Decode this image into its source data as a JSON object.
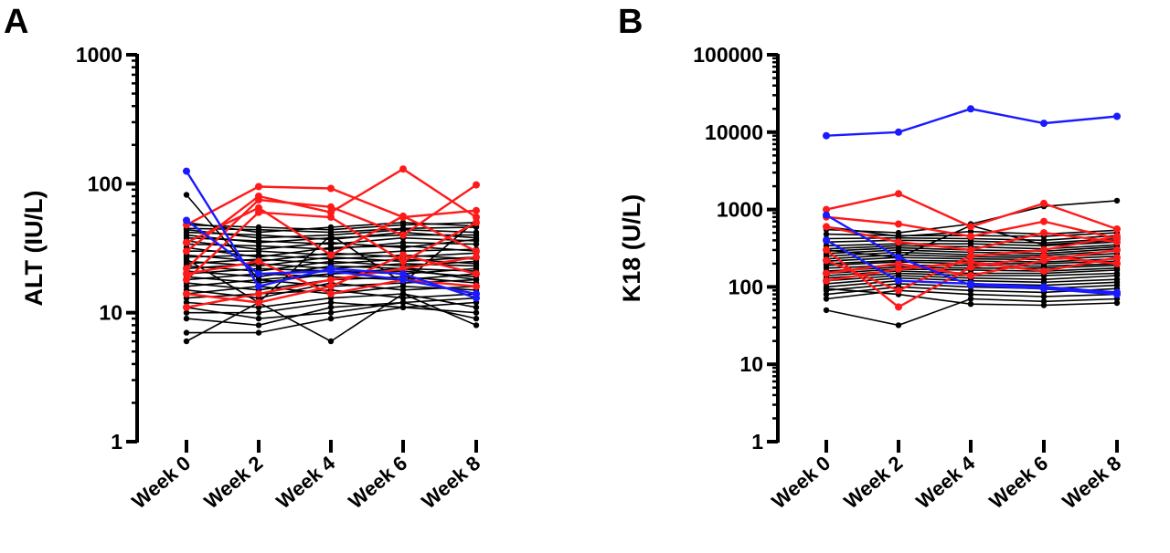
{
  "chart_data": [
    {
      "panel_label": "A",
      "type": "line",
      "ylabel": "ALT (IU/L)",
      "xlabel": "",
      "title": "",
      "y_scale": "log10",
      "ylim": [
        1,
        1000
      ],
      "y_ticks": [
        "1",
        "10",
        "100",
        "1000"
      ],
      "categories": [
        "Week 0",
        "Week 2",
        "Week 4",
        "Week 6",
        "Week 8"
      ],
      "grid": false,
      "legend": "none",
      "colors": {
        "default": "#000000",
        "red": "#ff1a1a",
        "blue": "#1a1aff"
      },
      "series": [
        {
          "color": "blue",
          "values": [
            125,
            16,
            22,
            20,
            13
          ]
        },
        {
          "color": "blue",
          "values": [
            52,
            20,
            21,
            18,
            14
          ]
        },
        {
          "color": "red",
          "values": [
            48,
            95,
            92,
            55,
            62
          ]
        },
        {
          "color": "red",
          "values": [
            30,
            80,
            60,
            130,
            55
          ]
        },
        {
          "color": "red",
          "values": [
            22,
            75,
            66,
            40,
            98
          ]
        },
        {
          "color": "red",
          "values": [
            35,
            65,
            28,
            56,
            30
          ]
        },
        {
          "color": "red",
          "values": [
            18,
            60,
            55,
            25,
            50
          ]
        },
        {
          "color": "red",
          "values": [
            11,
            14,
            18,
            22,
            27
          ]
        },
        {
          "color": "red",
          "values": [
            14,
            12,
            16,
            28,
            20
          ]
        },
        {
          "color": "red",
          "values": [
            20,
            25,
            14,
            18,
            16
          ]
        },
        {
          "color": "black",
          "values": [
            82,
            18,
            20,
            22,
            18
          ]
        },
        {
          "color": "black",
          "values": [
            6,
            12,
            6,
            14,
            8
          ]
        },
        {
          "color": "black",
          "values": [
            7,
            7,
            9,
            11,
            10
          ]
        },
        {
          "color": "black",
          "values": [
            9,
            8,
            11,
            12,
            13
          ]
        },
        {
          "color": "black",
          "values": [
            10,
            10,
            12,
            11,
            12
          ]
        },
        {
          "color": "black",
          "values": [
            12,
            11,
            13,
            14,
            11
          ]
        },
        {
          "color": "black",
          "values": [
            13,
            14,
            15,
            13,
            14
          ]
        },
        {
          "color": "black",
          "values": [
            14,
            16,
            14,
            16,
            15
          ]
        },
        {
          "color": "black",
          "values": [
            15,
            13,
            17,
            15,
            16
          ]
        },
        {
          "color": "black",
          "values": [
            16,
            18,
            16,
            17,
            18
          ]
        },
        {
          "color": "black",
          "values": [
            17,
            15,
            18,
            19,
            17
          ]
        },
        {
          "color": "black",
          "values": [
            18,
            20,
            19,
            18,
            20
          ]
        },
        {
          "color": "black",
          "values": [
            19,
            17,
            20,
            21,
            19
          ]
        },
        {
          "color": "black",
          "values": [
            20,
            22,
            21,
            20,
            22
          ]
        },
        {
          "color": "black",
          "values": [
            21,
            19,
            23,
            22,
            21
          ]
        },
        {
          "color": "black",
          "values": [
            22,
            24,
            22,
            24,
            23
          ]
        },
        {
          "color": "black",
          "values": [
            23,
            21,
            25,
            23,
            25
          ]
        },
        {
          "color": "black",
          "values": [
            24,
            26,
            24,
            26,
            24
          ]
        },
        {
          "color": "black",
          "values": [
            25,
            23,
            27,
            25,
            27
          ]
        },
        {
          "color": "black",
          "values": [
            27,
            28,
            26,
            28,
            26
          ]
        },
        {
          "color": "black",
          "values": [
            28,
            25,
            29,
            27,
            29
          ]
        },
        {
          "color": "black",
          "values": [
            30,
            30,
            28,
            30,
            31
          ]
        },
        {
          "color": "black",
          "values": [
            32,
            27,
            32,
            33,
            30
          ]
        },
        {
          "color": "black",
          "values": [
            34,
            33,
            31,
            35,
            34
          ]
        },
        {
          "color": "black",
          "values": [
            36,
            31,
            35,
            32,
            37
          ]
        },
        {
          "color": "black",
          "values": [
            38,
            36,
            34,
            38,
            36
          ]
        },
        {
          "color": "black",
          "values": [
            40,
            35,
            38,
            40,
            40
          ]
        },
        {
          "color": "black",
          "values": [
            42,
            40,
            37,
            42,
            38
          ]
        },
        {
          "color": "black",
          "values": [
            45,
            44,
            42,
            45,
            46
          ]
        },
        {
          "color": "black",
          "values": [
            48,
            46,
            44,
            48,
            50
          ]
        },
        {
          "color": "black",
          "values": [
            50,
            42,
            46,
            50,
            47
          ]
        },
        {
          "color": "black",
          "values": [
            44,
            38,
            40,
            44,
            42
          ]
        },
        {
          "color": "black",
          "values": [
            26,
            12,
            40,
            17,
            52
          ]
        },
        {
          "color": "black",
          "values": [
            11,
            9,
            10,
            12,
            9
          ]
        }
      ]
    },
    {
      "panel_label": "B",
      "type": "line",
      "ylabel": "K18 (U/L)",
      "xlabel": "",
      "title": "",
      "y_scale": "log10",
      "ylim": [
        1,
        100000
      ],
      "y_ticks": [
        "1",
        "10",
        "100",
        "1000",
        "10000",
        "100000"
      ],
      "categories": [
        "Week 0",
        "Week 2",
        "Week 4",
        "Week 6",
        "Week 8"
      ],
      "grid": false,
      "legend": "none",
      "colors": {
        "default": "#000000",
        "red": "#ff1a1a",
        "blue": "#1a1aff"
      },
      "series": [
        {
          "color": "blue",
          "values": [
            9000,
            10000,
            20000,
            13000,
            16000
          ]
        },
        {
          "color": "blue",
          "values": [
            850,
            240,
            105,
            95,
            80
          ]
        },
        {
          "color": "blue",
          "values": [
            400,
            120,
            110,
            100,
            85
          ]
        },
        {
          "color": "red",
          "values": [
            1000,
            1600,
            600,
            1200,
            560
          ]
        },
        {
          "color": "red",
          "values": [
            800,
            650,
            450,
            700,
            420
          ]
        },
        {
          "color": "red",
          "values": [
            600,
            380,
            300,
            500,
            380
          ]
        },
        {
          "color": "red",
          "values": [
            300,
            55,
            180,
            250,
            200
          ]
        },
        {
          "color": "red",
          "values": [
            220,
            90,
            250,
            300,
            450
          ]
        },
        {
          "color": "red",
          "values": [
            150,
            200,
            140,
            220,
            300
          ]
        },
        {
          "color": "red",
          "values": [
            120,
            170,
            210,
            160,
            240
          ]
        },
        {
          "color": "black",
          "values": [
            50,
            32,
            70,
            65,
            70
          ]
        },
        {
          "color": "black",
          "values": [
            70,
            90,
            80,
            75,
            80
          ]
        },
        {
          "color": "black",
          "values": [
            80,
            100,
            90,
            85,
            95
          ]
        },
        {
          "color": "black",
          "values": [
            90,
            110,
            100,
            95,
            105
          ]
        },
        {
          "color": "black",
          "values": [
            100,
            120,
            110,
            105,
            115
          ]
        },
        {
          "color": "black",
          "values": [
            110,
            130,
            120,
            115,
            125
          ]
        },
        {
          "color": "black",
          "values": [
            120,
            140,
            130,
            125,
            140
          ]
        },
        {
          "color": "black",
          "values": [
            130,
            150,
            140,
            140,
            150
          ]
        },
        {
          "color": "black",
          "values": [
            140,
            160,
            150,
            150,
            165
          ]
        },
        {
          "color": "black",
          "values": [
            150,
            170,
            165,
            160,
            175
          ]
        },
        {
          "color": "black",
          "values": [
            160,
            180,
            175,
            175,
            190
          ]
        },
        {
          "color": "black",
          "values": [
            175,
            190,
            190,
            185,
            200
          ]
        },
        {
          "color": "black",
          "values": [
            190,
            210,
            200,
            200,
            215
          ]
        },
        {
          "color": "black",
          "values": [
            200,
            220,
            215,
            210,
            230
          ]
        },
        {
          "color": "black",
          "values": [
            215,
            240,
            230,
            225,
            250
          ]
        },
        {
          "color": "black",
          "values": [
            230,
            260,
            245,
            240,
            270
          ]
        },
        {
          "color": "black",
          "values": [
            250,
            280,
            260,
            255,
            290
          ]
        },
        {
          "color": "black",
          "values": [
            270,
            300,
            280,
            270,
            310
          ]
        },
        {
          "color": "black",
          "values": [
            290,
            320,
            300,
            290,
            330
          ]
        },
        {
          "color": "black",
          "values": [
            310,
            340,
            330,
            310,
            350
          ]
        },
        {
          "color": "black",
          "values": [
            340,
            360,
            360,
            340,
            380
          ]
        },
        {
          "color": "black",
          "values": [
            380,
            400,
            390,
            370,
            420
          ]
        },
        {
          "color": "black",
          "values": [
            420,
            430,
            420,
            400,
            460
          ]
        },
        {
          "color": "black",
          "values": [
            480,
            460,
            460,
            450,
            500
          ]
        },
        {
          "color": "black",
          "values": [
            550,
            500,
            650,
            1100,
            1300
          ]
        },
        {
          "color": "black",
          "values": [
            600,
            450,
            520,
            480,
            540
          ]
        },
        {
          "color": "black",
          "values": [
            300,
            240,
            620,
            350,
            400
          ]
        },
        {
          "color": "black",
          "values": [
            95,
            80,
            60,
            58,
            62
          ]
        }
      ]
    }
  ]
}
